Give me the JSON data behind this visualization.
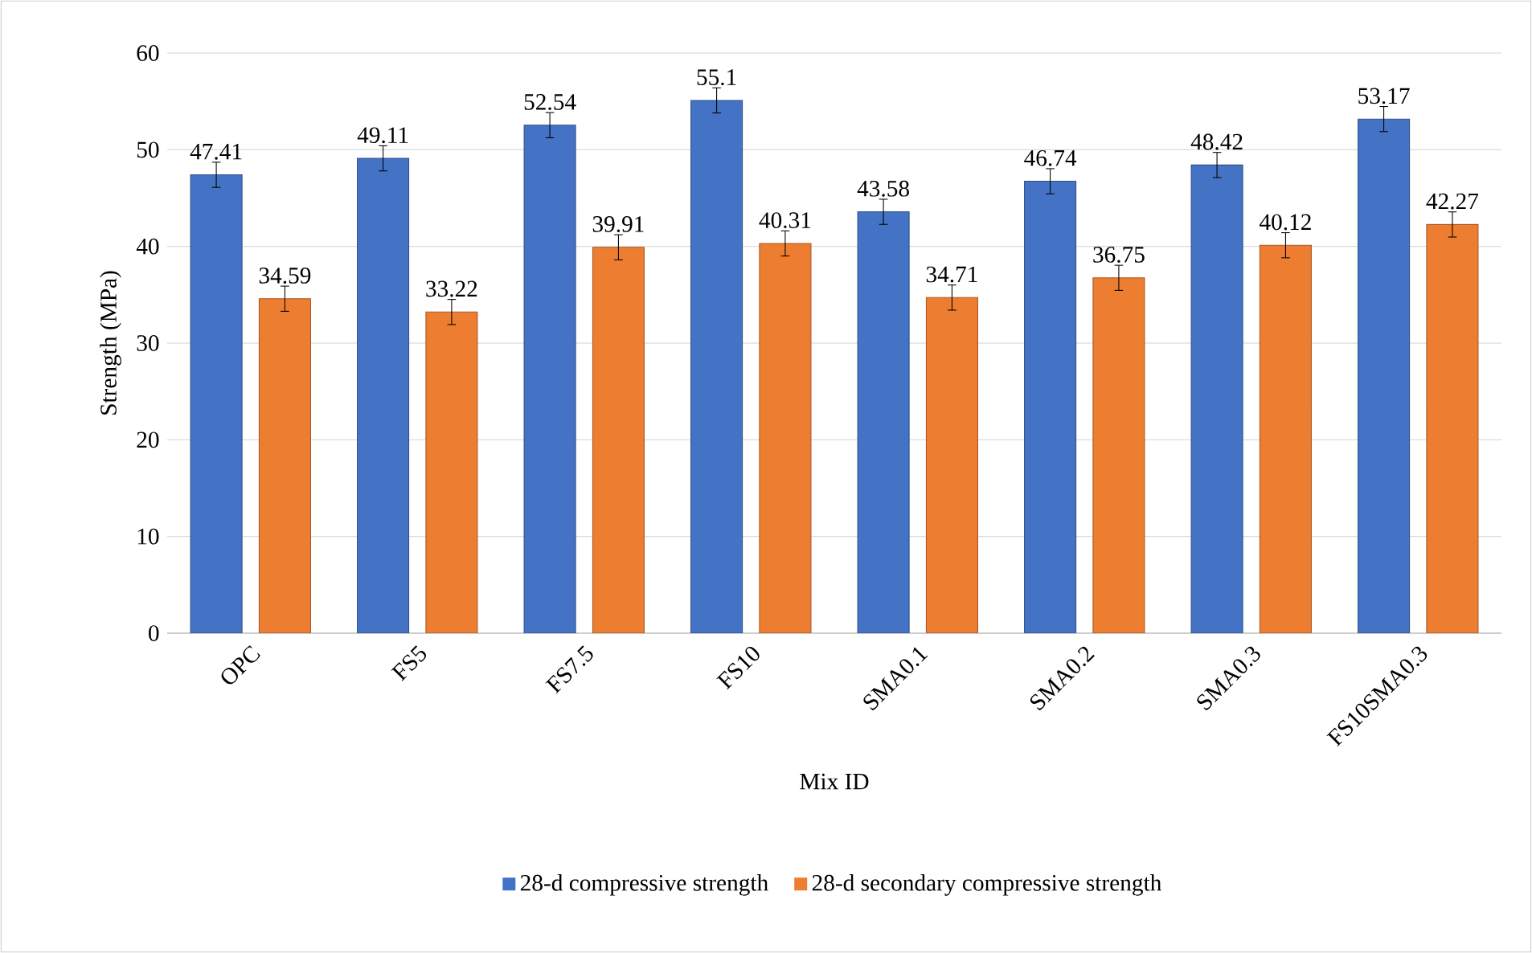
{
  "chart_data": {
    "type": "bar",
    "xlabel": "Mix ID",
    "ylabel": "Strength (MPa)",
    "categories": [
      "OPC",
      "FS5",
      "FS7.5",
      "FS10",
      "SMA0.1",
      "SMA0.2",
      "SMA0.3",
      "FS10SMA0.3"
    ],
    "series": [
      {
        "name": "28-d compressive strength",
        "color": "#4472c4",
        "values": [
          47.41,
          49.11,
          52.54,
          55.1,
          43.58,
          46.74,
          48.42,
          53.17
        ],
        "errors": [
          1.3,
          1.3,
          1.3,
          1.3,
          1.3,
          1.3,
          1.3,
          1.3
        ]
      },
      {
        "name": "28-d secondary compressive strength",
        "color": "#ed7d31",
        "values": [
          34.59,
          33.22,
          39.91,
          40.31,
          34.71,
          36.75,
          40.12,
          42.27
        ],
        "errors": [
          1.3,
          1.3,
          1.3,
          1.3,
          1.3,
          1.3,
          1.3,
          1.3
        ]
      }
    ],
    "ylim": [
      0,
      60
    ],
    "yticks": [
      0,
      10,
      20,
      30,
      40,
      50,
      60
    ],
    "grid": "y",
    "legend": "bottom",
    "data_labels": true
  }
}
